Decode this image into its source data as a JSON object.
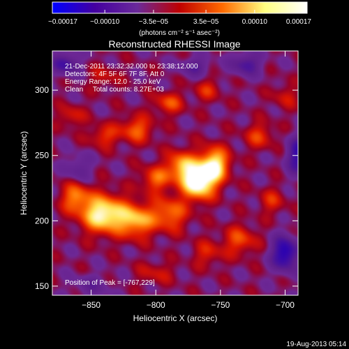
{
  "chart_data": {
    "type": "heatmap",
    "title": "Reconstructed RHESSI Image",
    "xlabel": "Heliocentric X (arcsec)",
    "ylabel": "Heliocentric Y (arcsec)",
    "xlim": [
      -880,
      -690
    ],
    "ylim": [
      143,
      330
    ],
    "x_ticks": [
      {
        "value": -850,
        "label": "−850"
      },
      {
        "value": -800,
        "label": "−800"
      },
      {
        "value": -750,
        "label": "−750"
      },
      {
        "value": -700,
        "label": "−700"
      }
    ],
    "y_ticks": [
      {
        "value": 150,
        "label": "150"
      },
      {
        "value": 200,
        "label": "200"
      },
      {
        "value": 250,
        "label": "250"
      },
      {
        "value": 300,
        "label": "300"
      }
    ],
    "colorbar": {
      "range": [
        -0.00017,
        0.00017
      ],
      "units": "(photons cm⁻² s⁻¹ asec⁻²)",
      "ticks": [
        {
          "value": -0.00017,
          "label": "−0.00017"
        },
        {
          "value": -0.0001,
          "label": "−0.00010"
        },
        {
          "value": -3.5e-05,
          "label": "−3.5e−05"
        },
        {
          "value": 3.5e-05,
          "label": "3.5e−05"
        },
        {
          "value": 0.0001,
          "label": "0.00010"
        },
        {
          "value": 0.00017,
          "label": "0.00017"
        }
      ],
      "colors": [
        "#0000ff",
        "#4400a0",
        "#6a2a9a",
        "#c00000",
        "#ff6a00",
        "#ffff80",
        "#ffffff"
      ]
    },
    "info": [
      "21-Dec-2011 23:32:32.000 to 23:38:12.000",
      "Detectors: 4F 5F 6F 7F 8F, Att 0",
      "Energy Range: 12.0 - 25.0 keV",
      "Clean     Total counts: 8.27E+03"
    ],
    "peak_text": "Position of Peak = [-767,229]",
    "peak": [
      -767,
      229
    ],
    "sources": [
      {
        "x": -840,
        "y": 205,
        "amp": 0.00016,
        "sx": 12,
        "sy": 10
      },
      {
        "x": -815,
        "y": 200,
        "amp": 0.00011,
        "sx": 9,
        "sy": 9
      },
      {
        "x": -862,
        "y": 218,
        "amp": 9e-05,
        "sx": 8,
        "sy": 8
      },
      {
        "x": -790,
        "y": 205,
        "amp": 9e-05,
        "sx": 10,
        "sy": 9
      },
      {
        "x": -767,
        "y": 229,
        "amp": 0.00017,
        "sx": 9,
        "sy": 9
      },
      {
        "x": -755,
        "y": 243,
        "amp": 0.00015,
        "sx": 8,
        "sy": 9
      },
      {
        "x": -780,
        "y": 242,
        "amp": 0.00011,
        "sx": 8,
        "sy": 8
      },
      {
        "x": -800,
        "y": 232,
        "amp": 8e-05,
        "sx": 8,
        "sy": 7
      },
      {
        "x": -815,
        "y": 270,
        "amp": 8e-05,
        "sx": 9,
        "sy": 7
      },
      {
        "x": -840,
        "y": 265,
        "amp": 6e-05,
        "sx": 8,
        "sy": 6
      },
      {
        "x": -790,
        "y": 290,
        "amp": 7e-05,
        "sx": 8,
        "sy": 6
      },
      {
        "x": -760,
        "y": 300,
        "amp": 5e-05,
        "sx": 7,
        "sy": 6
      },
      {
        "x": -720,
        "y": 265,
        "amp": 6e-05,
        "sx": 8,
        "sy": 7
      },
      {
        "x": -735,
        "y": 185,
        "amp": 7e-05,
        "sx": 9,
        "sy": 8
      },
      {
        "x": -760,
        "y": 175,
        "amp": 5e-05,
        "sx": 8,
        "sy": 7
      },
      {
        "x": -800,
        "y": 160,
        "amp": 4e-05,
        "sx": 10,
        "sy": 6
      },
      {
        "x": -710,
        "y": 215,
        "amp": 5e-05,
        "sx": 7,
        "sy": 7
      },
      {
        "x": -865,
        "y": 280,
        "amp": 5e-05,
        "sx": 7,
        "sy": 6
      },
      {
        "x": -700,
        "y": 295,
        "amp": 4e-05,
        "sx": 7,
        "sy": 7
      },
      {
        "x": -840,
        "y": 310,
        "amp": 4e-05,
        "sx": 8,
        "sy": 6
      },
      {
        "x": -700,
        "y": 175,
        "amp": -0.00013,
        "sx": 7,
        "sy": 9
      },
      {
        "x": -870,
        "y": 320,
        "amp": -9e-05,
        "sx": 7,
        "sy": 6
      },
      {
        "x": -690,
        "y": 250,
        "amp": -0.0001,
        "sx": 6,
        "sy": 10
      },
      {
        "x": -770,
        "y": 318,
        "amp": -6e-05,
        "sx": 8,
        "sy": 5
      },
      {
        "x": -730,
        "y": 320,
        "amp": -8e-05,
        "sx": 8,
        "sy": 6
      },
      {
        "x": -860,
        "y": 240,
        "amp": -5e-05,
        "sx": 7,
        "sy": 7
      },
      {
        "x": -850,
        "y": 150,
        "amp": -4e-05,
        "sx": 10,
        "sy": 6
      }
    ]
  },
  "footer": {
    "timestamp": "19-Aug-2013 05:14"
  }
}
